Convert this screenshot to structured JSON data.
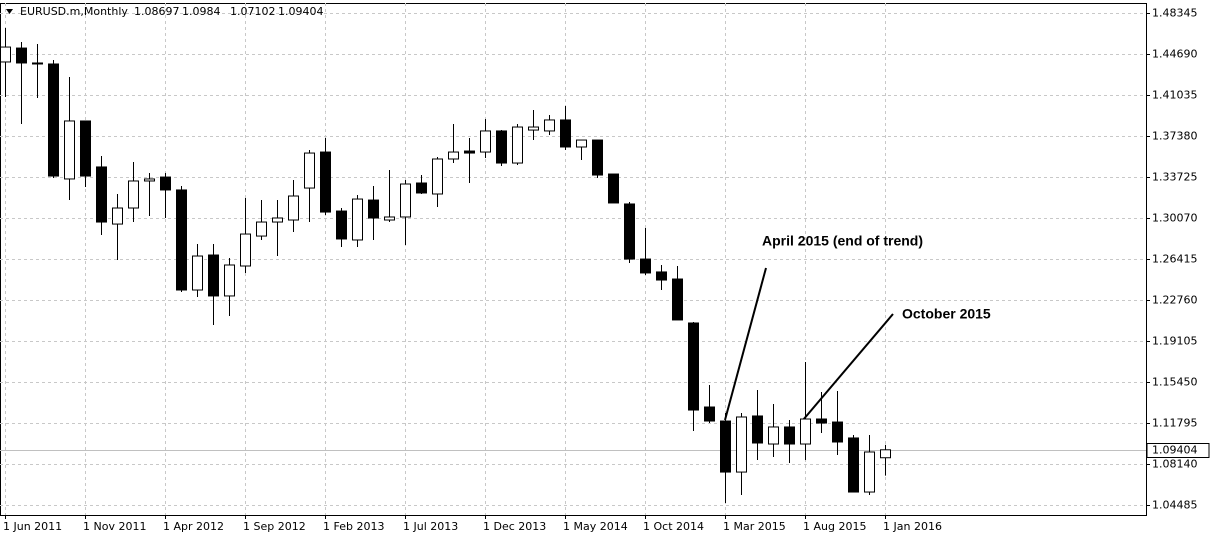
{
  "chart_data": {
    "type": "candlestick",
    "symbol": "EURUSD.m,Monthly",
    "categories": [
      "1 Jun 2011",
      null,
      null,
      null,
      null,
      "1 Nov 2011",
      null,
      null,
      null,
      null,
      "1 Apr 2012",
      null,
      null,
      null,
      null,
      "1 Sep 2012",
      null,
      null,
      null,
      null,
      "1 Feb 2013",
      null,
      null,
      null,
      null,
      "1 Jul 2013",
      null,
      null,
      null,
      null,
      "1 Dec 2013",
      null,
      null,
      null,
      null,
      "1 May 2014",
      null,
      null,
      null,
      null,
      "1 Oct 2014",
      null,
      null,
      null,
      null,
      "1 Mar 2015",
      null,
      null,
      null,
      null,
      "1 Aug 2015",
      null,
      null,
      null,
      null,
      "1 Jan 2016"
    ],
    "open": [
      1.4398,
      1.4522,
      1.4389,
      1.438,
      1.3355,
      1.3872,
      1.3462,
      1.2953,
      1.3096,
      1.3337,
      1.3372,
      1.3257,
      1.2365,
      1.2677,
      1.2312,
      1.2579,
      1.2846,
      1.2971,
      1.2989,
      1.3274,
      1.3595,
      1.3069,
      1.2811,
      1.3167,
      1.2989,
      1.3016,
      1.3319,
      1.3221,
      1.3533,
      1.3604,
      1.3595,
      1.3783,
      1.3497,
      1.3791,
      1.3783,
      1.3881,
      1.364,
      1.3702,
      1.3399,
      1.3132,
      1.2641,
      1.2526,
      1.2463,
      1.2071,
      1.1322,
      1.1197,
      1.0742,
      1.1242,
      1.0992,
      1.1144,
      1.0992,
      1.1215,
      1.1188,
      1.1046,
      1.0564,
      1.08697
    ],
    "high": [
      1.4701,
      1.4576,
      1.4558,
      1.4416,
      1.4264,
      1.3872,
      1.356,
      1.3221,
      1.3506,
      1.3408,
      1.3408,
      1.3292,
      1.2775,
      1.2775,
      1.265,
      1.3185,
      1.3167,
      1.3167,
      1.3346,
      1.3613,
      1.372,
      1.3096,
      1.3212,
      1.3292,
      1.3435,
      1.3346,
      1.339,
      1.3551,
      1.3845,
      1.372,
      1.389,
      1.3791,
      1.3845,
      1.397,
      1.3925,
      1.4005,
      1.3702,
      1.3702,
      1.3399,
      1.315,
      1.2918,
      1.2588,
      1.2579,
      1.208,
      1.1518,
      1.1269,
      1.1269,
      1.1474,
      1.1349,
      1.1206,
      1.1723,
      1.1456,
      1.1465,
      1.1072,
      1.1072,
      1.0984
    ],
    "low": [
      1.4086,
      1.3845,
      1.4077,
      1.3364,
      1.3167,
      1.3283,
      1.2855,
      1.2632,
      1.2971,
      1.3025,
      1.3007,
      1.2347,
      1.2303,
      1.2053,
      1.2133,
      1.2517,
      1.2811,
      1.2668,
      1.2882,
      1.2971,
      1.3034,
      1.2748,
      1.2748,
      1.2811,
      1.2971,
      1.2766,
      1.3221,
      1.3105,
      1.3497,
      1.3319,
      1.3542,
      1.3471,
      1.3479,
      1.3702,
      1.3747,
      1.3613,
      1.3524,
      1.3364,
      1.3141,
      1.2606,
      1.2499,
      1.2365,
      1.2098,
      1.1108,
      1.1179,
      1.0466,
      1.0537,
      1.085,
      1.0876,
      1.0823,
      1.085,
      1.109,
      1.0894,
      1.0564,
      1.0537,
      1.07102
    ],
    "close": [
      1.4531,
      1.4389,
      1.438,
      1.3381,
      1.3872,
      1.3381,
      1.2971,
      1.3096,
      1.3337,
      1.3355,
      1.3257,
      1.2365,
      1.2668,
      1.2312,
      1.2588,
      1.2864,
      1.2971,
      1.3007,
      1.3203,
      1.3586,
      1.306,
      1.282,
      1.3176,
      1.3007,
      1.3016,
      1.331,
      1.323,
      1.3533,
      1.3595,
      1.3586,
      1.3783,
      1.3497,
      1.3818,
      1.3818,
      1.3881,
      1.364,
      1.3702,
      1.339,
      1.3141,
      1.2641,
      1.2517,
      1.2454,
      1.2098,
      1.1295,
      1.1197,
      1.0742,
      1.1233,
      1.1001,
      1.1144,
      1.0992,
      1.1215,
      1.1179,
      1.101,
      1.0564,
      1.0921,
      1.09404
    ],
    "up_color": "#ffffff",
    "down_color": "#000000",
    "ylim": [
      1.03592,
      1.49237
    ],
    "yticks": [
      1.48345,
      {
        "value": 1.4469,
        "label": "1.44690"
      },
      1.41035,
      {
        "value": 1.3738,
        "label": "1.37380"
      },
      1.33725,
      {
        "value": 1.3007,
        "label": "1.30070"
      },
      1.26415,
      {
        "value": 1.2276,
        "label": "1.22760"
      },
      1.19105,
      {
        "value": 1.1545,
        "label": "1.15450"
      },
      1.11795,
      {
        "value": 1.0814,
        "label": "1.08140"
      },
      1.04485
    ],
    "grid": true,
    "annotations": [
      "April 2015 (end of trend)",
      "October 2015"
    ]
  }
}
